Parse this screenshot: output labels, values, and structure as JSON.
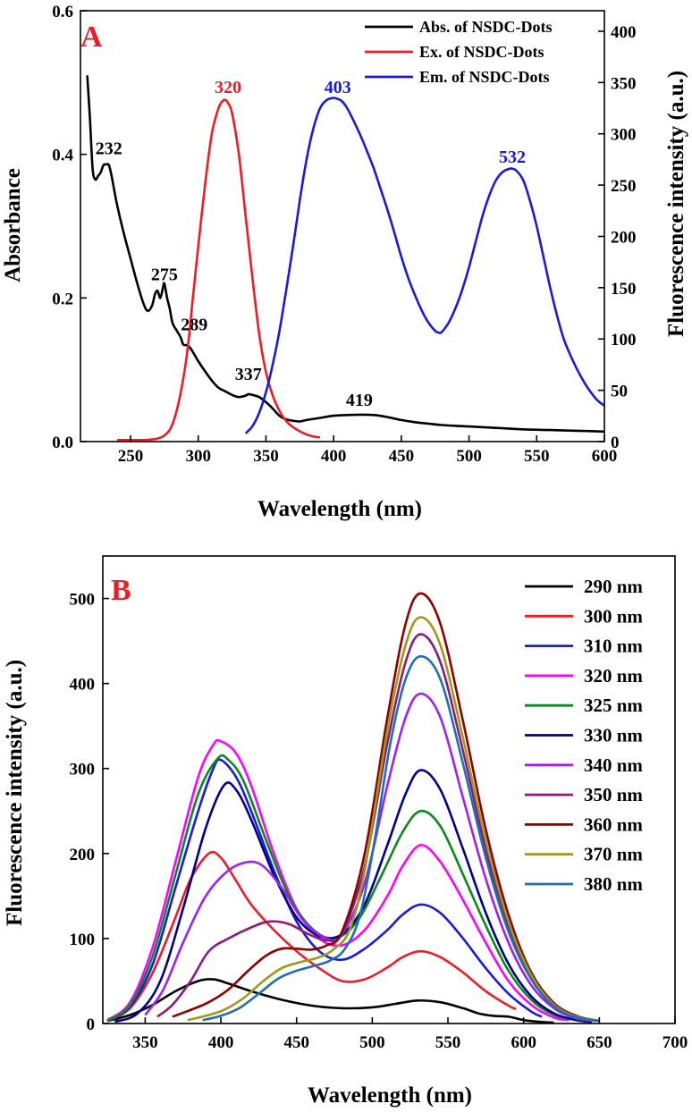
{
  "chart_data": [
    {
      "type": "line",
      "panel_label": "A",
      "panel_label_color": "#ee1c25",
      "xlabel": "Wavelength (nm)",
      "ylabel": "Absorbance",
      "ylabel_right": "Fluorescence intensity (a.u.)",
      "xlim": [
        213,
        600
      ],
      "ylim": [
        0,
        0.6
      ],
      "ylim_right": [
        0,
        420
      ],
      "xticks": [
        250,
        300,
        350,
        400,
        450,
        500,
        550,
        600
      ],
      "yticks": [
        0.0,
        0.2,
        0.4,
        0.6
      ],
      "yticks_right": [
        0,
        50,
        100,
        150,
        200,
        250,
        300,
        350,
        400
      ],
      "ytick_labels": [
        "0.0",
        "0.2",
        "0.4",
        "0.6"
      ],
      "legend_position": "top-right",
      "series": [
        {
          "name": "Abs. of NSDC-Dots",
          "color": "#000000",
          "axis": "left",
          "x": [
            218,
            220,
            222,
            224,
            226,
            228,
            230,
            232,
            234,
            236,
            240,
            245,
            250,
            255,
            260,
            263,
            266,
            268,
            270,
            272,
            274,
            275,
            277,
            279,
            281,
            284,
            287,
            289,
            292,
            295,
            300,
            305,
            310,
            315,
            320,
            325,
            330,
            335,
            337,
            340,
            345,
            350,
            355,
            360,
            365,
            370,
            375,
            380,
            390,
            400,
            410,
            419,
            430,
            440,
            450,
            460,
            470,
            480,
            500,
            520,
            540,
            560,
            580,
            600
          ],
          "y": [
            0.51,
            0.45,
            0.38,
            0.365,
            0.37,
            0.375,
            0.385,
            0.386,
            0.385,
            0.37,
            0.33,
            0.29,
            0.255,
            0.22,
            0.19,
            0.182,
            0.19,
            0.205,
            0.21,
            0.2,
            0.215,
            0.22,
            0.2,
            0.185,
            0.165,
            0.155,
            0.145,
            0.135,
            0.134,
            0.128,
            0.112,
            0.098,
            0.085,
            0.075,
            0.07,
            0.065,
            0.062,
            0.064,
            0.066,
            0.065,
            0.062,
            0.055,
            0.046,
            0.036,
            0.031,
            0.029,
            0.028,
            0.03,
            0.033,
            0.036,
            0.037,
            0.0375,
            0.037,
            0.034,
            0.03,
            0.027,
            0.025,
            0.023,
            0.021,
            0.019,
            0.017,
            0.016,
            0.015,
            0.014
          ]
        },
        {
          "name": "Ex. of NSDC-Dots",
          "color": "#ee1c25",
          "axis": "right",
          "x": [
            240,
            250,
            260,
            265,
            270,
            275,
            280,
            285,
            290,
            293,
            296,
            300,
            305,
            310,
            315,
            318,
            320,
            322,
            325,
            330,
            335,
            340,
            345,
            350,
            355,
            360,
            365,
            370,
            375,
            380,
            385,
            390
          ],
          "y": [
            1.5,
            1.5,
            1.5,
            2,
            3,
            6,
            14,
            35,
            70,
            100,
            140,
            190,
            250,
            300,
            325,
            332,
            333,
            330,
            320,
            280,
            220,
            160,
            105,
            68,
            45,
            30,
            20,
            14,
            10,
            7,
            5,
            4
          ]
        },
        {
          "name": "Em. of NSDC-Dots",
          "color": "#1a1adb",
          "axis": "right",
          "x": [
            335,
            340,
            345,
            350,
            355,
            360,
            365,
            370,
            375,
            380,
            385,
            390,
            395,
            400,
            403,
            406,
            410,
            415,
            420,
            425,
            430,
            435,
            440,
            445,
            450,
            455,
            460,
            465,
            470,
            475,
            478,
            480,
            485,
            490,
            495,
            500,
            505,
            510,
            515,
            520,
            525,
            530,
            532,
            535,
            540,
            545,
            550,
            555,
            560,
            565,
            570,
            575,
            580,
            585,
            590,
            595,
            600
          ],
          "y": [
            8,
            15,
            28,
            48,
            75,
            108,
            148,
            190,
            235,
            275,
            305,
            325,
            333,
            335,
            334,
            332,
            325,
            312,
            298,
            282,
            265,
            245,
            225,
            203,
            180,
            160,
            143,
            128,
            116,
            108,
            106,
            107,
            116,
            130,
            148,
            170,
            195,
            220,
            240,
            255,
            263,
            266,
            266,
            264,
            255,
            235,
            210,
            180,
            150,
            123,
            100,
            84,
            70,
            58,
            48,
            40,
            35
          ]
        }
      ],
      "annotations": [
        {
          "text": "232",
          "x": 234,
          "y": 0.4,
          "color": "#000000",
          "axis": "left"
        },
        {
          "text": "275",
          "x": 275,
          "y": 0.225,
          "color": "#000000",
          "axis": "left"
        },
        {
          "text": "289",
          "x": 297,
          "y": 0.155,
          "color": "#000000",
          "axis": "left"
        },
        {
          "text": "337",
          "x": 337,
          "y": 0.086,
          "color": "#000000",
          "axis": "left"
        },
        {
          "text": "419",
          "x": 419,
          "y": 0.05,
          "color": "#000000",
          "axis": "left"
        },
        {
          "text": "320",
          "x": 322,
          "y": 340,
          "color": "#ee1c25",
          "axis": "right"
        },
        {
          "text": "403",
          "x": 403,
          "y": 340,
          "color": "#1a1adb",
          "axis": "right"
        },
        {
          "text": "532",
          "x": 532,
          "y": 272,
          "color": "#1a1adb",
          "axis": "right"
        }
      ]
    },
    {
      "type": "line",
      "panel_label": "B",
      "panel_label_color": "#ee1c25",
      "xlabel": "Wavelength (nm)",
      "ylabel": "Fluorescence intensity (a.u.)",
      "xlim": [
        322,
        700
      ],
      "ylim": [
        0,
        550
      ],
      "xticks": [
        350,
        400,
        450,
        500,
        550,
        600,
        650,
        700
      ],
      "yticks": [
        0,
        100,
        200,
        300,
        400,
        500
      ],
      "legend_position": "top-right",
      "series": [
        {
          "name": "290 nm",
          "color": "#000000",
          "x": [
            325,
            340,
            355,
            370,
            385,
            395,
            405,
            420,
            440,
            460,
            480,
            500,
            515,
            530,
            545,
            560,
            570,
            580,
            590,
            600,
            610,
            620
          ],
          "y": [
            3,
            10,
            22,
            38,
            50,
            52,
            47,
            38,
            28,
            21,
            18,
            19,
            23,
            27,
            25,
            18,
            12,
            9,
            8,
            4,
            2,
            1
          ]
        },
        {
          "name": "300 nm",
          "color": "#ee1c25",
          "x": [
            325,
            340,
            355,
            370,
            380,
            392,
            400,
            410,
            420,
            435,
            450,
            465,
            480,
            495,
            510,
            520,
            532,
            545,
            560,
            575,
            590,
            595
          ],
          "y": [
            3,
            18,
            60,
            125,
            170,
            200,
            195,
            168,
            140,
            110,
            85,
            65,
            50,
            52,
            66,
            78,
            85,
            78,
            60,
            38,
            21,
            17
          ]
        },
        {
          "name": "310 nm",
          "color": "#1a1adb",
          "x": [
            325,
            340,
            355,
            370,
            385,
            395,
            400,
            410,
            420,
            435,
            450,
            465,
            480,
            495,
            510,
            520,
            532,
            545,
            560,
            575,
            590,
            605,
            612
          ],
          "y": [
            3,
            20,
            70,
            160,
            250,
            300,
            310,
            290,
            250,
            180,
            120,
            85,
            75,
            88,
            110,
            128,
            140,
            130,
            100,
            65,
            35,
            14,
            8
          ]
        },
        {
          "name": "320 nm",
          "color": "#ff00ff",
          "x": [
            325,
            340,
            355,
            370,
            385,
            395,
            400,
            410,
            420,
            435,
            450,
            465,
            480,
            495,
            510,
            520,
            532,
            545,
            560,
            575,
            590,
            605,
            620,
            630
          ],
          "y": [
            4,
            25,
            90,
            190,
            290,
            328,
            332,
            318,
            280,
            200,
            135,
            100,
            92,
            110,
            150,
            185,
            210,
            190,
            145,
            95,
            50,
            22,
            7,
            4
          ]
        },
        {
          "name": "325 nm",
          "color": "#0a8a1e",
          "x": [
            325,
            340,
            355,
            370,
            385,
            398,
            405,
            415,
            430,
            445,
            460,
            475,
            490,
            505,
            520,
            532,
            545,
            560,
            575,
            590,
            605,
            620,
            635
          ],
          "y": [
            3,
            22,
            80,
            175,
            270,
            312,
            310,
            285,
            215,
            150,
            112,
            100,
            120,
            170,
            225,
            250,
            232,
            175,
            115,
            62,
            28,
            10,
            4
          ]
        },
        {
          "name": "330 nm",
          "color": "#00008b",
          "x": [
            330,
            345,
            360,
            375,
            390,
            402,
            410,
            420,
            435,
            450,
            465,
            480,
            495,
            510,
            522,
            532,
            545,
            560,
            575,
            590,
            605,
            620,
            635,
            645
          ],
          "y": [
            2,
            12,
            50,
            135,
            230,
            280,
            275,
            240,
            175,
            125,
            103,
            105,
            140,
            210,
            270,
            298,
            275,
            205,
            130,
            70,
            32,
            12,
            4,
            2
          ]
        },
        {
          "name": "340 nm",
          "color": "#a020f0",
          "x": [
            350,
            362,
            375,
            390,
            405,
            418,
            428,
            440,
            455,
            470,
            480,
            495,
            510,
            522,
            532,
            545,
            560,
            575,
            590,
            605,
            620,
            635,
            648
          ],
          "y": [
            10,
            40,
            95,
            150,
            180,
            190,
            185,
            160,
            120,
            100,
            105,
            165,
            280,
            360,
            388,
            360,
            265,
            170,
            95,
            45,
            18,
            6,
            3
          ]
        },
        {
          "name": "350 nm",
          "color": "#8b1a7a",
          "x": [
            358,
            368,
            380,
            392,
            405,
            420,
            432,
            445,
            458,
            470,
            480,
            495,
            510,
            522,
            532,
            545,
            560,
            575,
            590,
            605,
            620,
            635,
            650
          ],
          "y": [
            8,
            22,
            50,
            85,
            100,
            113,
            120,
            117,
            105,
            98,
            106,
            185,
            330,
            425,
            458,
            425,
            320,
            205,
            115,
            55,
            22,
            8,
            3
          ]
        },
        {
          "name": "360 nm",
          "color": "#8b0000",
          "x": [
            368,
            380,
            392,
            405,
            418,
            430,
            440,
            450,
            460,
            470,
            480,
            495,
            510,
            522,
            532,
            545,
            560,
            575,
            590,
            605,
            620,
            635,
            650
          ],
          "y": [
            8,
            16,
            25,
            40,
            62,
            80,
            88,
            88,
            87,
            92,
            108,
            200,
            360,
            470,
            506,
            470,
            355,
            228,
            128,
            60,
            24,
            9,
            3
          ]
        },
        {
          "name": "370 nm",
          "color": "#9e9a1a",
          "x": [
            378,
            390,
            402,
            415,
            428,
            440,
            452,
            465,
            475,
            485,
            495,
            510,
            522,
            532,
            545,
            560,
            575,
            590,
            605,
            620,
            635,
            650
          ],
          "y": [
            4,
            9,
            16,
            30,
            50,
            65,
            72,
            78,
            88,
            110,
            180,
            345,
            445,
            478,
            445,
            335,
            215,
            120,
            57,
            22,
            8,
            3
          ]
        },
        {
          "name": "380 nm",
          "color": "#1f6fb0",
          "x": [
            388,
            400,
            412,
            425,
            438,
            450,
            462,
            472,
            482,
            492,
            502,
            512,
            522,
            532,
            545,
            560,
            575,
            590,
            605,
            620,
            635,
            650
          ],
          "y": [
            4,
            9,
            18,
            35,
            53,
            62,
            68,
            74,
            88,
            128,
            220,
            330,
            405,
            432,
            405,
            305,
            195,
            108,
            52,
            20,
            7,
            3
          ]
        }
      ]
    }
  ]
}
